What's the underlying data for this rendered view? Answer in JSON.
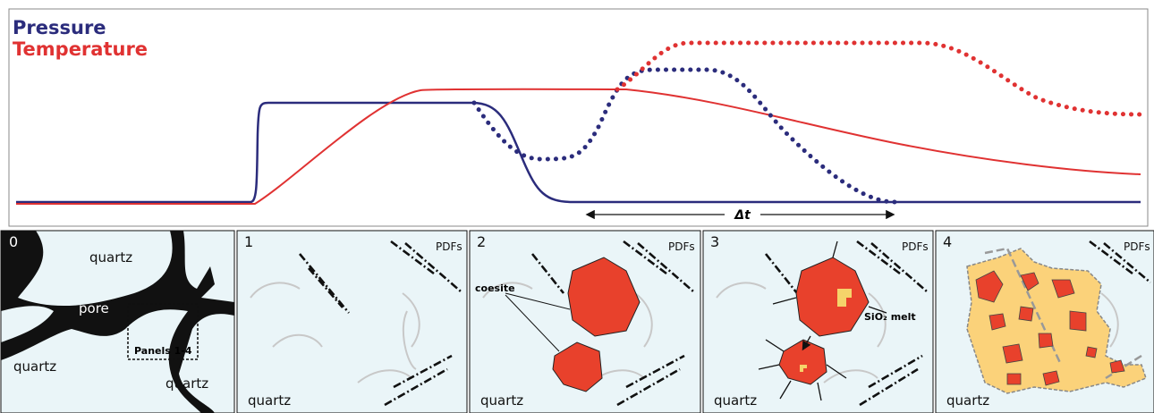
{
  "legend": {
    "pressure": "Pressure",
    "temperature": "Temperature"
  },
  "delta_t": "Δt",
  "panels": [
    {
      "number": "0",
      "labels": [
        "quartz",
        "pore",
        "Panels 1-4",
        "quartz",
        "quartz"
      ]
    },
    {
      "number": "1",
      "labels": [
        "PDFs",
        "quartz"
      ]
    },
    {
      "number": "2",
      "labels": [
        "PDFs",
        "coesite",
        "quartz"
      ]
    },
    {
      "number": "3",
      "labels": [
        "PDFs",
        "SiO₂ melt",
        "quartz"
      ]
    },
    {
      "number": "4",
      "labels": [
        "PDFs",
        "quartz"
      ]
    }
  ]
}
